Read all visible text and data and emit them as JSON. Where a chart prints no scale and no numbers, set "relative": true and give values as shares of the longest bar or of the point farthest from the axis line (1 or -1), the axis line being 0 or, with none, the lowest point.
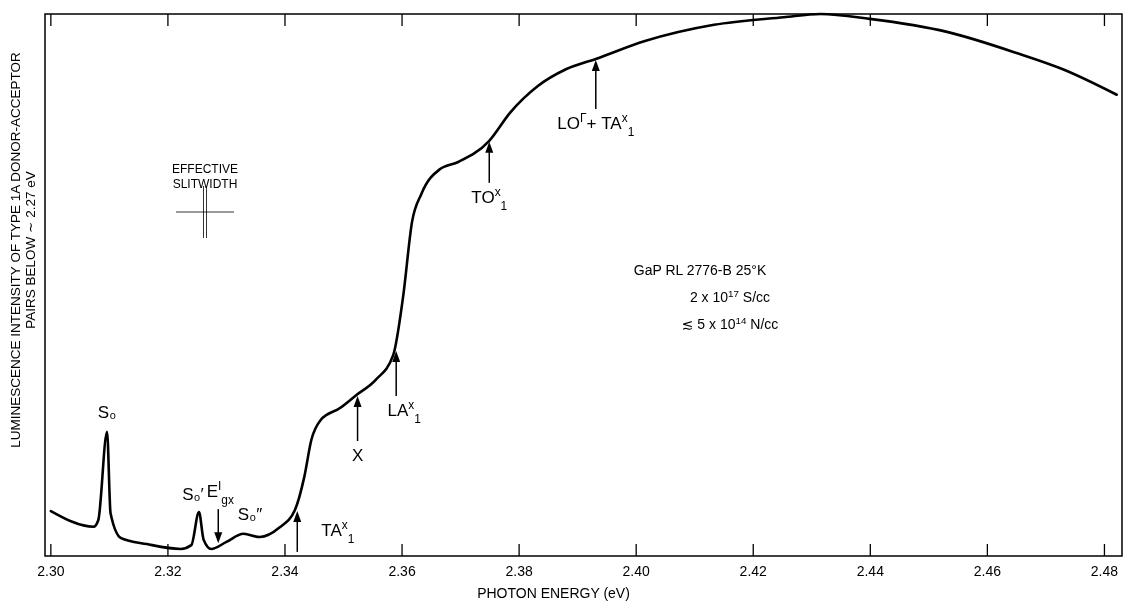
{
  "chart_data": {
    "type": "line",
    "relative": true,
    "color": "#000000",
    "xlabel": "PHOTON ENERGY (eV)",
    "ylabel": "LUMINESCENCE INTENSITY OF TYPE 1A DONOR-ACCEPTOR\nPAIRS BELOW ∼ 2.27 eV",
    "xlim": [
      2.299,
      2.483
    ],
    "xticks": [
      {
        "value": 2.3,
        "label": "2.30"
      },
      2.32,
      2.34,
      2.36,
      2.38,
      {
        "value": 2.4,
        "label": "2.40"
      },
      2.42,
      2.44,
      2.46,
      2.48
    ],
    "x": [
      2.3,
      2.3073,
      2.3081,
      2.3096,
      2.3102,
      2.312,
      2.3164,
      2.3222,
      2.324,
      2.3253,
      2.3261,
      2.3274,
      2.33,
      2.3329,
      2.3357,
      2.339,
      2.3417,
      2.3433,
      2.3445,
      2.3461,
      2.3494,
      2.3522,
      2.3555,
      2.3585,
      2.3602,
      2.3617,
      2.3633,
      2.3665,
      2.3696,
      2.3749,
      2.3784,
      2.3832,
      2.388,
      2.3931,
      2.4015,
      2.4133,
      2.4252,
      2.4315,
      2.4399,
      2.4531,
      2.465,
      2.4729,
      2.4821
    ],
    "values": [
      0.083,
      0.054,
      0.066,
      0.229,
      0.079,
      0.033,
      0.022,
      0.013,
      0.02,
      0.081,
      0.03,
      0.013,
      0.026,
      0.041,
      0.035,
      0.052,
      0.085,
      0.146,
      0.214,
      0.251,
      0.273,
      0.297,
      0.325,
      0.371,
      0.48,
      0.616,
      0.668,
      0.714,
      0.727,
      0.766,
      0.817,
      0.867,
      0.898,
      0.917,
      0.95,
      0.98,
      0.994,
      1,
      0.991,
      0.967,
      0.928,
      0.898,
      0.851
    ],
    "annotations": [
      {
        "text": "S₀",
        "x": 2.3096,
        "y": 0.229
      },
      {
        "text": "S₀′",
        "x": 2.3253,
        "y": 0.081
      },
      {
        "text": "E$^{I}$$_{gx}$",
        "x": 2.3286,
        "y": 0.02
      },
      {
        "text": "S₀″",
        "x": 2.333,
        "y": 0.041
      },
      {
        "text": "TA$^{x}$$_{1}$",
        "x": 2.3421,
        "y": 0.085
      },
      {
        "text": "X",
        "x": 2.3524,
        "y": 0.297
      },
      {
        "text": "LA$^{x}$$_{1}$",
        "x": 2.359,
        "y": 0.38
      },
      {
        "text": "TO$^{x}$$_{1}$",
        "x": 2.3749,
        "y": 0.766
      },
      {
        "text": "LO$^{Γ}$+ TA$^{x}$$_{1}$",
        "x": 2.3931,
        "y": 0.917
      },
      "EFFECTIVE\nSLITWIDTH",
      "GaP RL 2776-B   25°K",
      "2 x 10$^{17}$ S/cc",
      "≲ 5 x 10$^{14}$ N/cc"
    ]
  }
}
